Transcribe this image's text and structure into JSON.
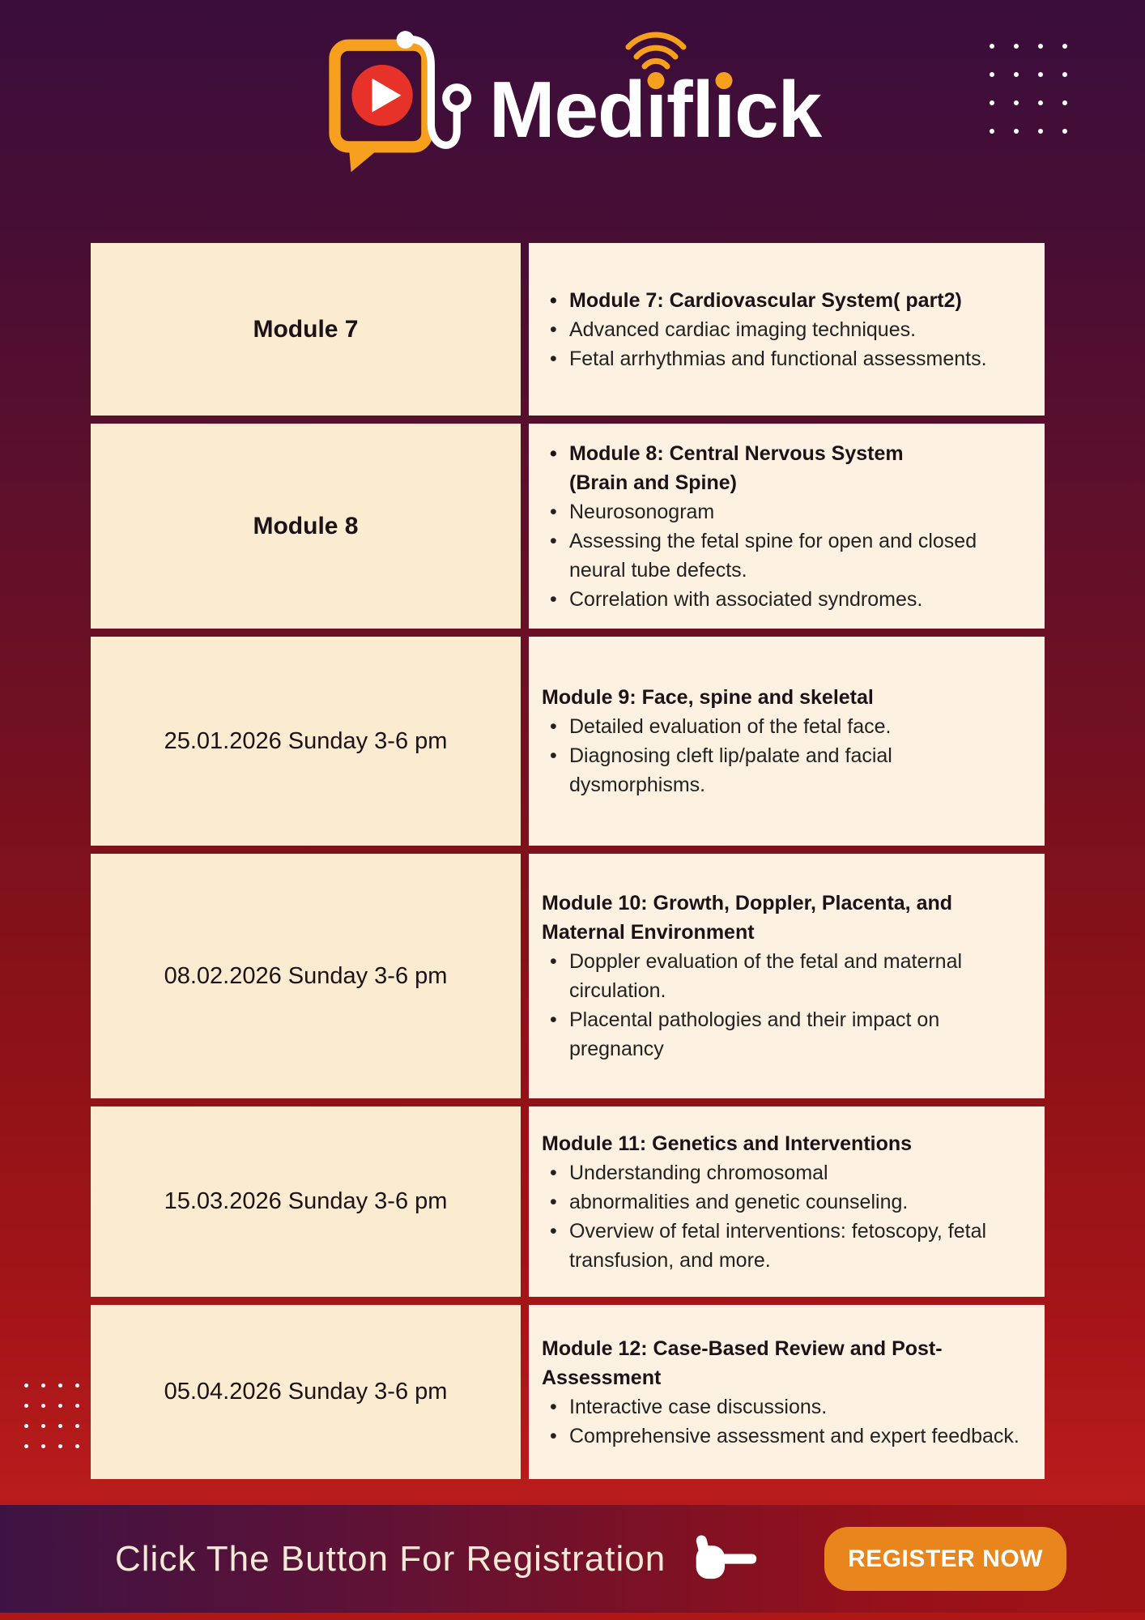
{
  "brand": {
    "name": "Mediflick",
    "parts": {
      "med": "Med",
      "i1": "ı",
      "fl": "fl",
      "i2": "ı",
      "ck": "ck"
    }
  },
  "colors": {
    "orange": "#F6A01D",
    "logo_red": "#E63228",
    "button_orange": "#E8851C",
    "panel_left": "#FBEBD1",
    "panel_right": "#FDF2E2",
    "text_dark": "#1C1318",
    "footer_text": "#F3E9D6"
  },
  "schedule": {
    "rows": [
      {
        "left": "Module 7",
        "left_bold": true,
        "heading": "Module 7: Cardiovascular System( part2)",
        "heading_bulleted": true,
        "bullets": [
          "Advanced cardiac imaging techniques.",
          " Fetal arrhythmias and functional assessments."
        ]
      },
      {
        "left": "Module 8",
        "left_bold": true,
        "heading": "Module 8:  Central Nervous System\n(Brain and Spine)",
        "heading_bulleted": true,
        "bullets": [
          "Neurosonogram",
          "Assessing the fetal spine for open and closed neural tube defects.",
          "Correlation with associated syndromes."
        ]
      },
      {
        "left": "25.01.2026 Sunday 3-6 pm",
        "left_bold": false,
        "heading": "Module 9: Face, spine and skeletal",
        "heading_bulleted": false,
        "bullets": [
          "Detailed evaluation of the fetal face.",
          "Diagnosing cleft lip/palate and facial dysmorphisms."
        ]
      },
      {
        "left": "08.02.2026 Sunday 3-6 pm",
        "left_bold": false,
        "heading": "Module 10:  Growth, Doppler, Placenta, and\nMaternal Environment",
        "heading_bulleted": false,
        "bullets": [
          "Doppler evaluation of the fetal and maternal circulation.",
          "Placental pathologies and their impact on pregnancy"
        ]
      },
      {
        "left": "15.03.2026 Sunday 3-6 pm",
        "left_bold": false,
        "heading": "Module 11: Genetics and Interventions",
        "heading_bulleted": false,
        "bullets": [
          "Understanding chromosomal",
          "abnormalities and genetic counseling.",
          "Overview of fetal interventions: fetoscopy, fetal transfusion, and more."
        ]
      },
      {
        "left": "05.04.2026 Sunday 3-6 pm",
        "left_bold": false,
        "heading": "Module 12: Case-Based Review and Post-\nAssessment",
        "heading_bulleted": false,
        "bullets": [
          "Interactive case discussions.",
          "Comprehensive assessment and expert feedback."
        ]
      }
    ]
  },
  "footer": {
    "cta_text": "Click The Button For Registration",
    "button_label": "REGISTER NOW"
  }
}
